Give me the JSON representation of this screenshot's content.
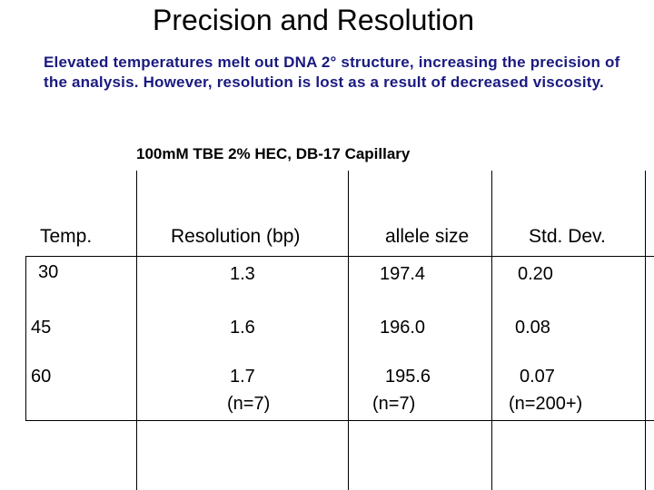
{
  "slide": {
    "title": "Precision and Resolution",
    "description": "Elevated temperatures melt out DNA 2° structure, increasing the precision of the analysis.  However, resolution is lost as a result of decreased viscosity.",
    "subtitle": "100mM TBE 2% HEC, DB-17 Capillary"
  },
  "table": {
    "headers": [
      "Temp.",
      "Resolution (bp)",
      "allele size",
      "Std. Dev."
    ],
    "rows": [
      {
        "temp": "30",
        "resolution": "1.3",
        "allele_size": "197.4",
        "std_dev": "0.20"
      },
      {
        "temp": "45",
        "resolution": "1.6",
        "allele_size": "196.0",
        "std_dev": "0.08"
      },
      {
        "temp": "60",
        "resolution": "1.7",
        "resolution_n": "(n=7)",
        "allele_size": "195.6",
        "allele_size_n": "(n=7)",
        "std_dev": "0.07",
        "std_dev_n": "(n=200+)"
      }
    ]
  }
}
